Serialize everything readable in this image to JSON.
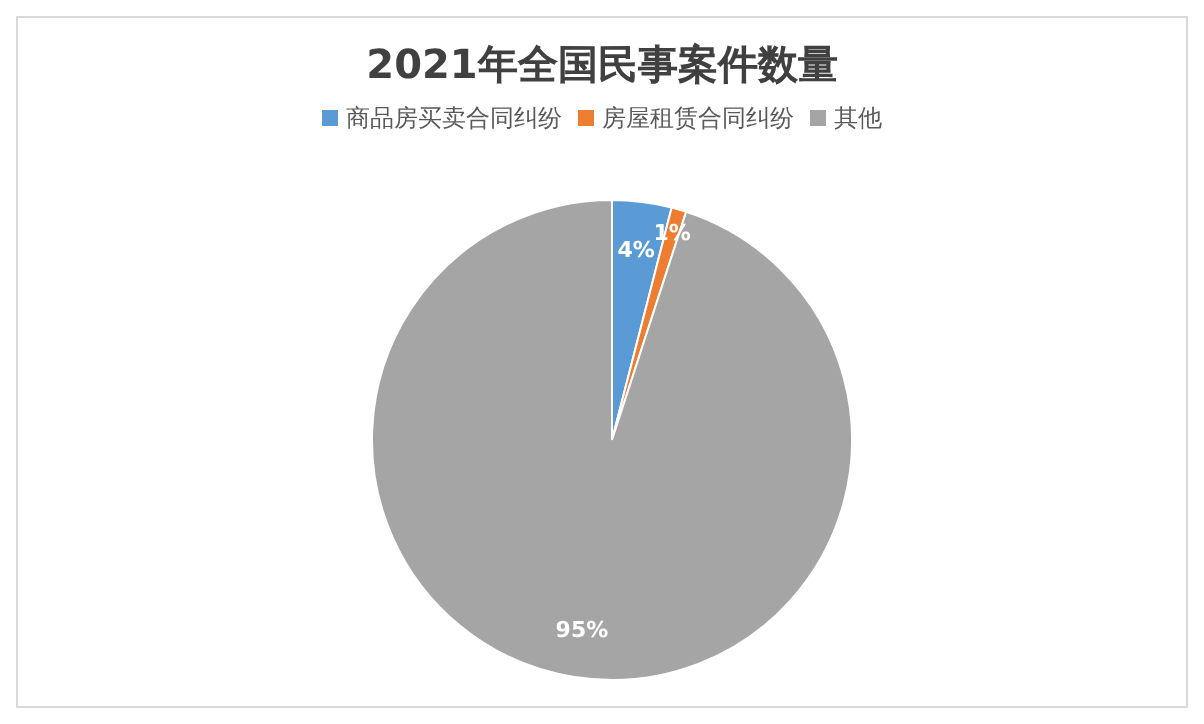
{
  "chart_data": {
    "type": "pie",
    "title": "2021年全国民事案件数量",
    "categories": [
      "商品房买卖合同纠纷",
      "房屋租赁合同纠纷",
      "其他"
    ],
    "values": [
      4,
      1,
      95
    ],
    "colors": [
      "#5b9bd5",
      "#ed7d31",
      "#a5a5a5"
    ],
    "value_labels": [
      "4%",
      "1%",
      "95%"
    ],
    "legend": "top"
  }
}
